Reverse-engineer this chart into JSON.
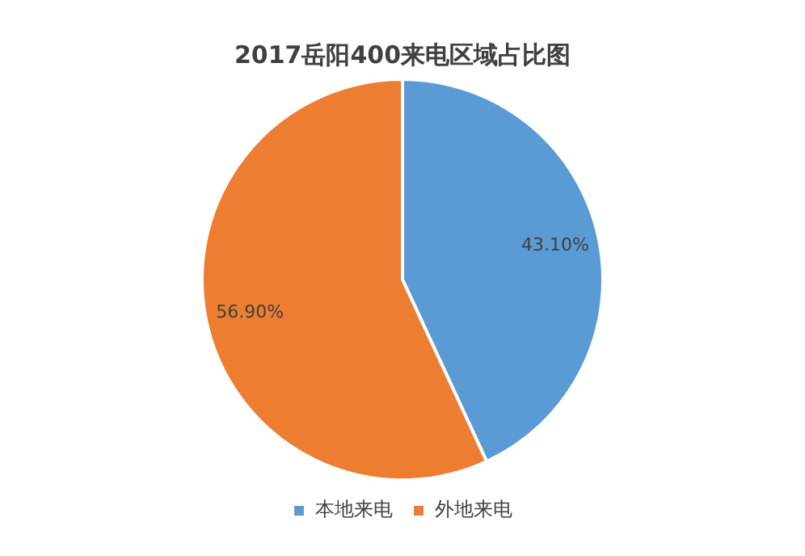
{
  "chart_data": {
    "type": "pie",
    "title": "2017岳阳400来电区域占比图",
    "categories": [
      "本地来电",
      "外地来电"
    ],
    "values": [
      43.1,
      56.9
    ],
    "colors": [
      "#5b9bd5",
      "#ed7d31"
    ],
    "value_labels": [
      "43.10%",
      "56.90%"
    ],
    "legend": "bottom"
  }
}
